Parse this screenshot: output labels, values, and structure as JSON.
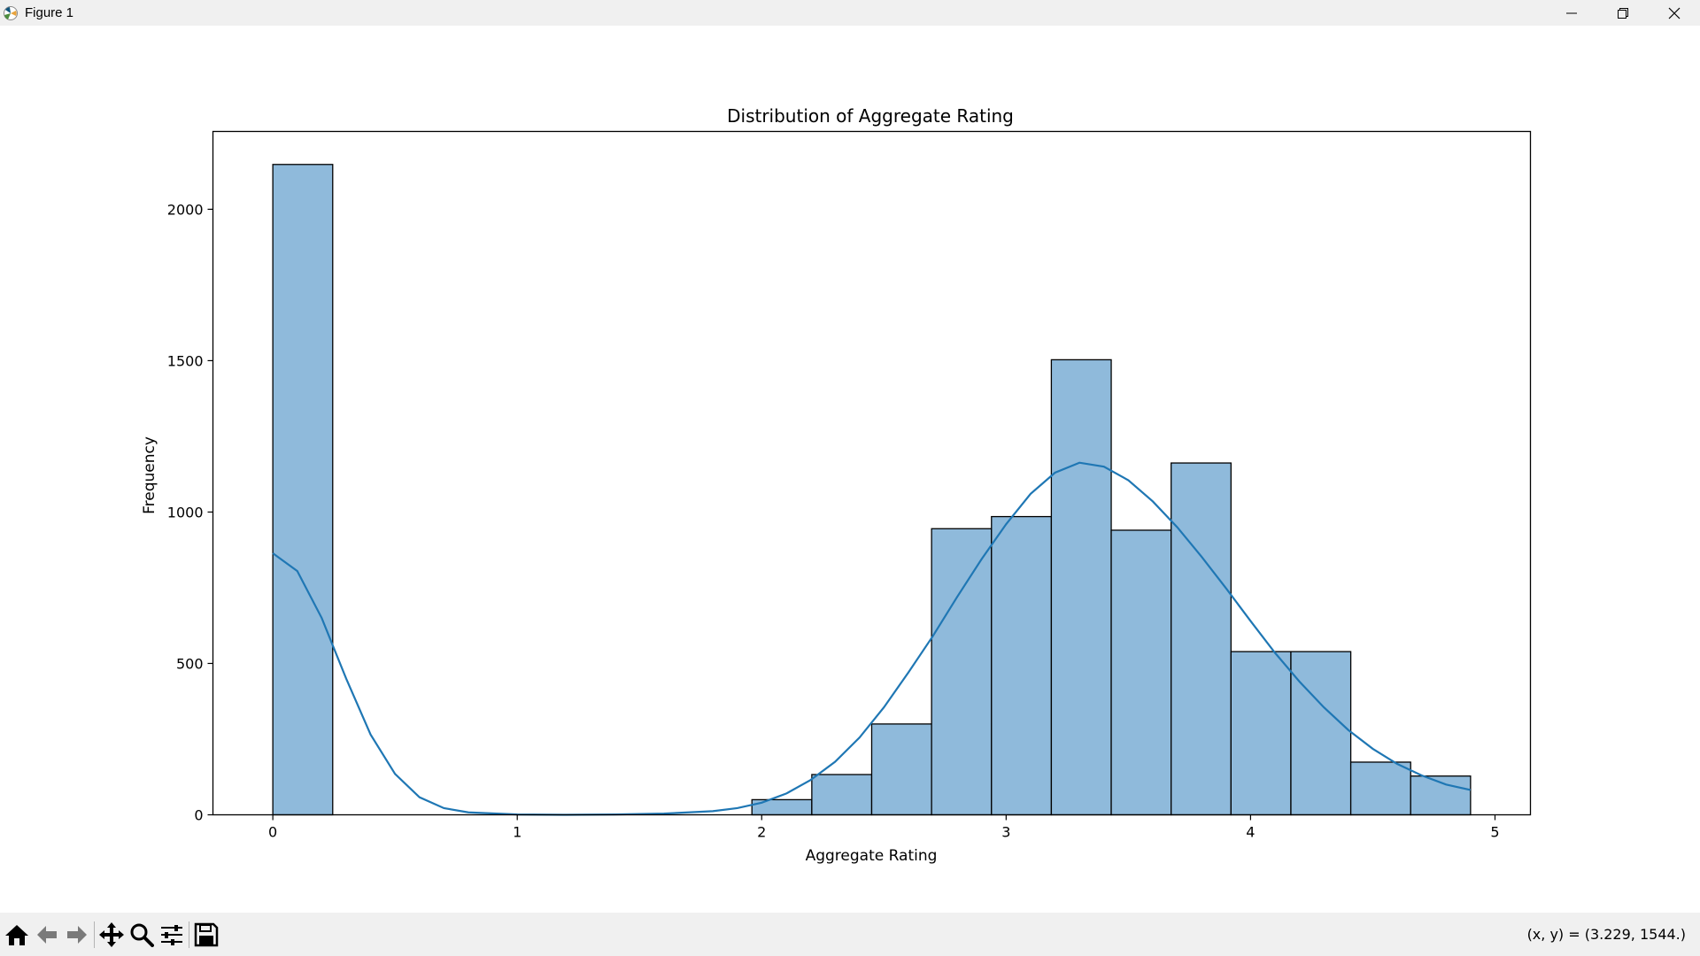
{
  "window": {
    "title": "Figure 1",
    "controls": [
      "minimize-icon",
      "restore-icon",
      "close-icon"
    ]
  },
  "toolbar": {
    "buttons": [
      "home-icon",
      "back-arrow-icon",
      "forward-arrow-icon",
      "pan-icon",
      "zoom-icon",
      "configure-subplots-icon",
      "save-icon"
    ],
    "coordinates": "(x, y) = (3.229, 1544.)"
  },
  "chart_data": {
    "type": "bar",
    "title": "Distribution of Aggregate Rating",
    "xlabel": "Aggregate Rating",
    "ylabel": "Frequency",
    "xlim": [
      -0.245,
      5.145
    ],
    "ylim": [
      0,
      2257
    ],
    "x_ticks": [
      0,
      1,
      2,
      3,
      4,
      5
    ],
    "y_ticks": [
      0,
      500,
      1000,
      1500,
      2000
    ],
    "bar_color": "#8fbadb",
    "edge_color": "#000000",
    "kde_color": "#1f77b4",
    "bins": [
      {
        "x0": 0.0,
        "x1": 0.245,
        "count": 2148
      },
      {
        "x0": 0.245,
        "x1": 0.49,
        "count": 0
      },
      {
        "x0": 0.49,
        "x1": 0.735,
        "count": 0
      },
      {
        "x0": 0.735,
        "x1": 0.98,
        "count": 0
      },
      {
        "x0": 0.98,
        "x1": 1.225,
        "count": 0
      },
      {
        "x0": 1.225,
        "x1": 1.47,
        "count": 0
      },
      {
        "x0": 1.47,
        "x1": 1.715,
        "count": 0
      },
      {
        "x0": 1.715,
        "x1": 1.96,
        "count": 0
      },
      {
        "x0": 1.96,
        "x1": 2.205,
        "count": 50
      },
      {
        "x0": 2.205,
        "x1": 2.45,
        "count": 133
      },
      {
        "x0": 2.45,
        "x1": 2.695,
        "count": 300
      },
      {
        "x0": 2.695,
        "x1": 2.94,
        "count": 945
      },
      {
        "x0": 2.94,
        "x1": 3.185,
        "count": 985
      },
      {
        "x0": 3.185,
        "x1": 3.43,
        "count": 1503
      },
      {
        "x0": 3.43,
        "x1": 3.675,
        "count": 940
      },
      {
        "x0": 3.675,
        "x1": 3.92,
        "count": 1162
      },
      {
        "x0": 3.92,
        "x1": 4.165,
        "count": 539
      },
      {
        "x0": 4.165,
        "x1": 4.41,
        "count": 539
      },
      {
        "x0": 4.41,
        "x1": 4.655,
        "count": 174
      },
      {
        "x0": 4.655,
        "x1": 4.9,
        "count": 128
      }
    ],
    "kde": {
      "x": [
        0.0,
        0.1,
        0.2,
        0.3,
        0.4,
        0.5,
        0.6,
        0.7,
        0.8,
        1.0,
        1.2,
        1.4,
        1.6,
        1.8,
        1.9,
        2.0,
        2.1,
        2.2,
        2.3,
        2.4,
        2.5,
        2.6,
        2.7,
        2.8,
        2.9,
        3.0,
        3.1,
        3.2,
        3.3,
        3.4,
        3.5,
        3.6,
        3.7,
        3.8,
        3.9,
        4.0,
        4.1,
        4.2,
        4.3,
        4.4,
        4.5,
        4.6,
        4.7,
        4.8,
        4.9
      ],
      "y": [
        864,
        805,
        650,
        450,
        265,
        135,
        58,
        22,
        8,
        1,
        0,
        1,
        4,
        12,
        22,
        40,
        70,
        115,
        175,
        255,
        355,
        470,
        590,
        720,
        845,
        960,
        1060,
        1130,
        1163,
        1150,
        1105,
        1035,
        950,
        852,
        748,
        640,
        535,
        440,
        355,
        280,
        218,
        168,
        130,
        100,
        82
      ]
    }
  }
}
